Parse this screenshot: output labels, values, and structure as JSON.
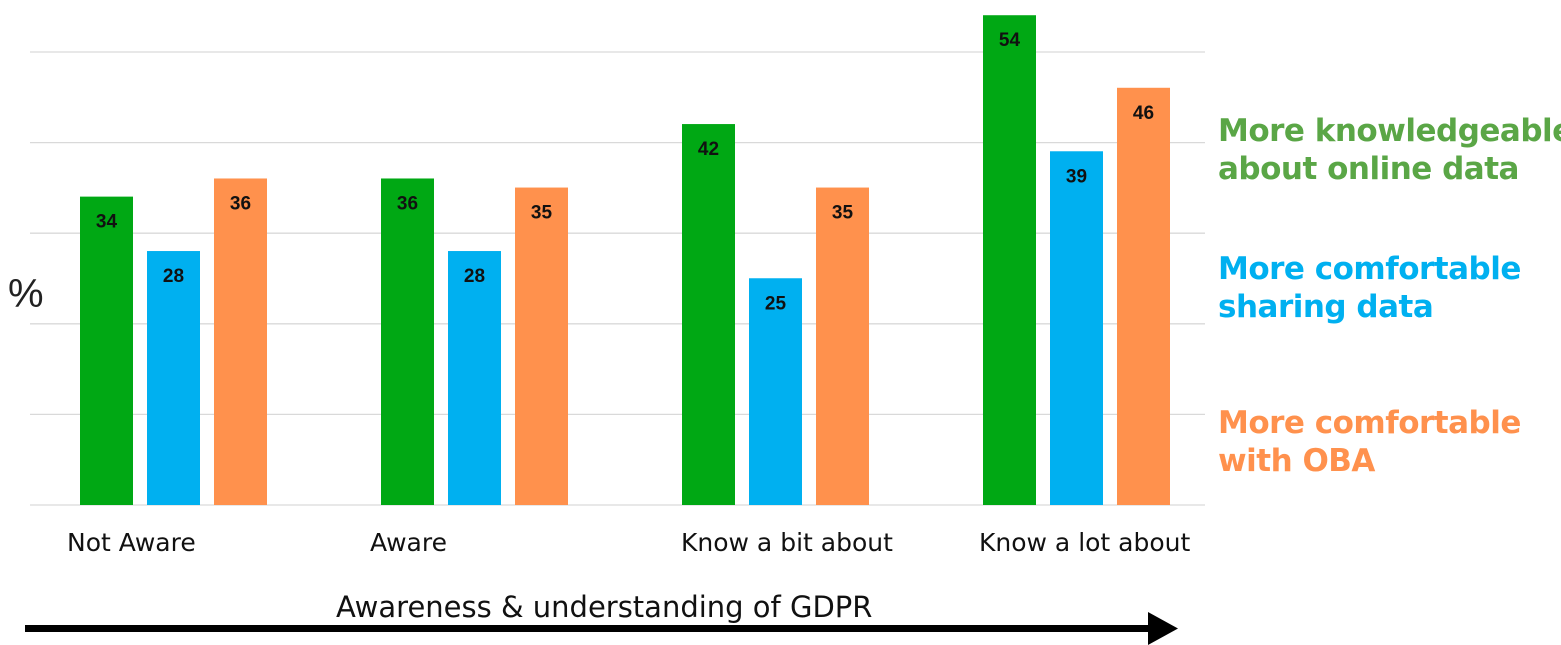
{
  "chart_data": {
    "type": "bar",
    "categories": [
      "Not Aware",
      "Aware",
      "Know a bit about",
      "Know a lot about"
    ],
    "series": [
      {
        "name": "More knowledgeable about online data",
        "values": [
          34,
          36,
          42,
          54
        ],
        "color": "#00a814"
      },
      {
        "name": "More comfortable sharing data",
        "values": [
          28,
          28,
          25,
          39
        ],
        "color": "#00b0f0"
      },
      {
        "name": "More comfortable with OBA",
        "values": [
          36,
          35,
          35,
          46
        ],
        "color": "#ff914d"
      }
    ],
    "legend_lines": [
      [
        "More knowledgeable",
        "about online data"
      ],
      [
        "More comfortable",
        "sharing data"
      ],
      [
        "More comfortable",
        "with OBA"
      ]
    ],
    "legend_colors": [
      "#5aa646",
      "#00b0f0",
      "#ff914d"
    ],
    "ylabel": "%",
    "xlabel": "Awareness & understanding of GDPR",
    "ylim": [
      0,
      56
    ],
    "grid": true,
    "legend_position": "right"
  }
}
